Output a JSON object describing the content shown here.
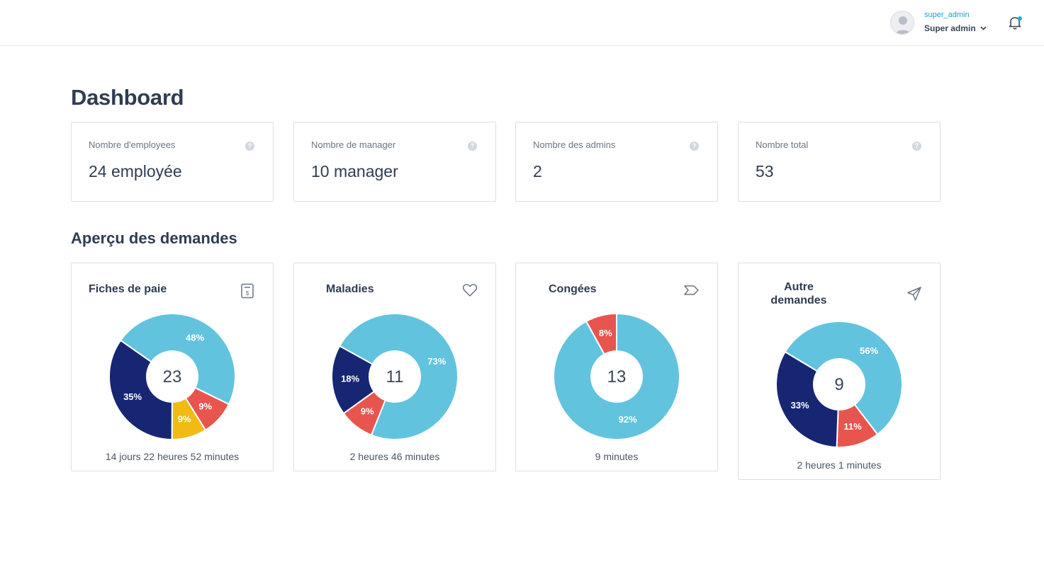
{
  "header": {
    "username": "super_admin",
    "role": "Super admin",
    "avatar_icon": "user-avatar",
    "notification_icon": "bell-icon",
    "notification_dot_color": "#1ab2d6"
  },
  "page": {
    "title": "Dashboard",
    "section_title": "Aperçu des demandes"
  },
  "stats": [
    {
      "label": "Nombre d'employees",
      "value": "24 employée"
    },
    {
      "label": "Nombre de manager",
      "value": "10 manager"
    },
    {
      "label": "Nombre des admins",
      "value": "2"
    },
    {
      "label": "Nombre total",
      "value": "53"
    }
  ],
  "colors": {
    "navy": "#162673",
    "light_blue": "#62c3df",
    "red": "#e8554e",
    "yellow": "#f2bb14"
  },
  "requests": [
    {
      "title": "Fiches de paie",
      "icon": "invoice-icon",
      "total": "23",
      "duration": "14 jours 22 heures 52 minutes"
    },
    {
      "title": "Maladies",
      "icon": "heart-icon",
      "total": "11",
      "duration": "2 heures 46 minutes"
    },
    {
      "title": "Congées",
      "icon": "chevron-right-outline-icon",
      "total": "13",
      "duration": "9 minutes"
    },
    {
      "title": "Autre demandes",
      "icon": "send-icon",
      "total": "9",
      "duration": "2 heures 1 minutes"
    }
  ],
  "chart_data": [
    {
      "type": "pie",
      "title": "Fiches de paie",
      "center_value": "23",
      "slices": [
        {
          "label": "48%",
          "value": 48,
          "color": "#62c3df"
        },
        {
          "label": "9%",
          "value": 9,
          "color": "#e8554e"
        },
        {
          "label": "9%",
          "value": 9,
          "color": "#f2bb14"
        },
        {
          "label": "35%",
          "value": 35,
          "color": "#162673"
        }
      ]
    },
    {
      "type": "pie",
      "title": "Maladies",
      "center_value": "11",
      "slices": [
        {
          "label": "73%",
          "value": 73,
          "color": "#62c3df"
        },
        {
          "label": "9%",
          "value": 9,
          "color": "#e8554e"
        },
        {
          "label": "18%",
          "value": 18,
          "color": "#162673"
        }
      ]
    },
    {
      "type": "pie",
      "title": "Congées",
      "center_value": "13",
      "slices": [
        {
          "label": "92%",
          "value": 92,
          "color": "#62c3df"
        },
        {
          "label": "8%",
          "value": 8,
          "color": "#e8554e"
        }
      ]
    },
    {
      "type": "pie",
      "title": "Autre demandes",
      "center_value": "9",
      "slices": [
        {
          "label": "56%",
          "value": 56,
          "color": "#62c3df"
        },
        {
          "label": "11%",
          "value": 11,
          "color": "#e8554e"
        },
        {
          "label": "33%",
          "value": 33,
          "color": "#162673"
        }
      ]
    }
  ]
}
